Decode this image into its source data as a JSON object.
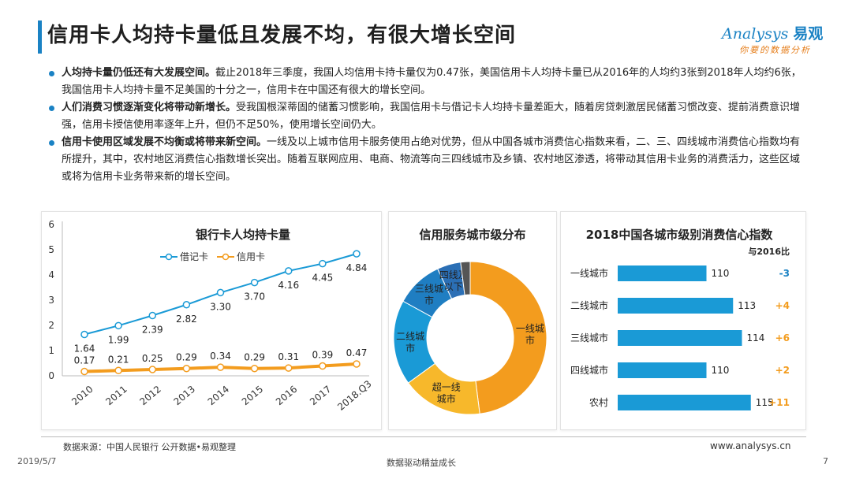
{
  "header": {
    "title": "信用卡人均持卡量低且发展不均，有很大增长空间"
  },
  "logo": {
    "main_italic": "nalysys",
    "main_prefix": "A",
    "main_cn": "易观",
    "slogan": "你要的数据分析"
  },
  "bullets": [
    {
      "bold": "人均持卡量仍低还有大发展空间。",
      "text": "截止2018年三季度，我国人均信用卡持卡量仅为0.47张，美国信用卡人均持卡量已从2016年的人均约3张到2018年人均约6张，我国信用卡人均持卡量不足美国的十分之一，信用卡在中国还有很大的增长空间。"
    },
    {
      "bold": "人们消费习惯逐渐变化将带动新增长。",
      "text": "受我国根深蒂固的储蓄习惯影响，我国信用卡与借记卡人均持卡量差距大，随着房贷刺激居民储蓄习惯改变、提前消费意识增强，信用卡授信使用率逐年上升，但仍不足50%，使用增长空间仍大。"
    },
    {
      "bold": "信用卡使用区域发展不均衡或将带来新空间。",
      "text": "一线及以上城市信用卡服务使用占绝对优势，但从中国各城市消费信心指数来看，二、三、四线城市消费信心指数均有所提升，其中，农村地区消费信心指数增长突出。随着互联网应用、电商、物流等向三四线城市及乡镇、农村地区渗透，将带动其信用卡业务的消费活力，这些区域或将为信用卡业务带来新的增长空间。"
    }
  ],
  "colors": {
    "blue": "#1a9ad6",
    "orange": "#f39c1e",
    "navy": "#1a82c4",
    "red_neg": "#1a82c4",
    "pos": "#f39c1e",
    "dark_blue": "#1f5fa8"
  },
  "chart_data": [
    {
      "type": "line",
      "title": "银行卡人均持卡量",
      "categories": [
        "2010",
        "2011",
        "2012",
        "2013",
        "2014",
        "2015",
        "2016",
        "2017",
        "2018.Q3"
      ],
      "series": [
        {
          "name": "借记卡",
          "values": [
            1.64,
            1.99,
            2.39,
            2.82,
            3.3,
            3.7,
            4.16,
            4.45,
            4.84
          ],
          "labels": [
            "1.64",
            "1.99",
            "2.39",
            "2.82",
            "3.30",
            "3.70",
            "4.16",
            "4.45",
            "4.84"
          ]
        },
        {
          "name": "信用卡",
          "values": [
            0.17,
            0.21,
            0.25,
            0.29,
            0.34,
            0.29,
            0.31,
            0.39,
            0.47
          ],
          "labels": [
            "0.17",
            "0.21",
            "0.25",
            "0.29",
            "0.34",
            "0.29",
            "0.31",
            "0.39",
            "0.47"
          ]
        }
      ],
      "ylim": [
        0,
        6
      ],
      "yticks": [
        "0",
        "1",
        "2",
        "3",
        "4",
        "5",
        "6"
      ],
      "grid": false,
      "legend": "top"
    },
    {
      "type": "pie",
      "title": "信用服务城市级分布",
      "slices": [
        {
          "label": "一线城市",
          "value": 48
        },
        {
          "label": "超一线城市",
          "value": 17
        },
        {
          "label": "二线城市",
          "value": 18
        },
        {
          "label": "三线城市",
          "value": 10
        },
        {
          "label": "四线及以下",
          "value": 5
        },
        {
          "label": "",
          "value": 2
        }
      ]
    },
    {
      "type": "bar",
      "title": "2018中国各城市级别消费信心指数",
      "subtitle": "与2016比",
      "categories": [
        "一线城市",
        "二线城市",
        "三线城市",
        "四线城市",
        "农村"
      ],
      "values": [
        110,
        113,
        114,
        110,
        115
      ],
      "value_labels": [
        "110",
        "113",
        "114",
        "110",
        "115"
      ],
      "changes": [
        "-3",
        "+4",
        "+6",
        "+2",
        "+11"
      ],
      "orientation": "horizontal"
    }
  ],
  "footer": {
    "source": "数据来源：中国人民银行 公开数据•易观整理",
    "url": "www.analysys.cn",
    "date": "2019/5/7",
    "slogan": "数据驱动精益成长",
    "page": "7"
  }
}
